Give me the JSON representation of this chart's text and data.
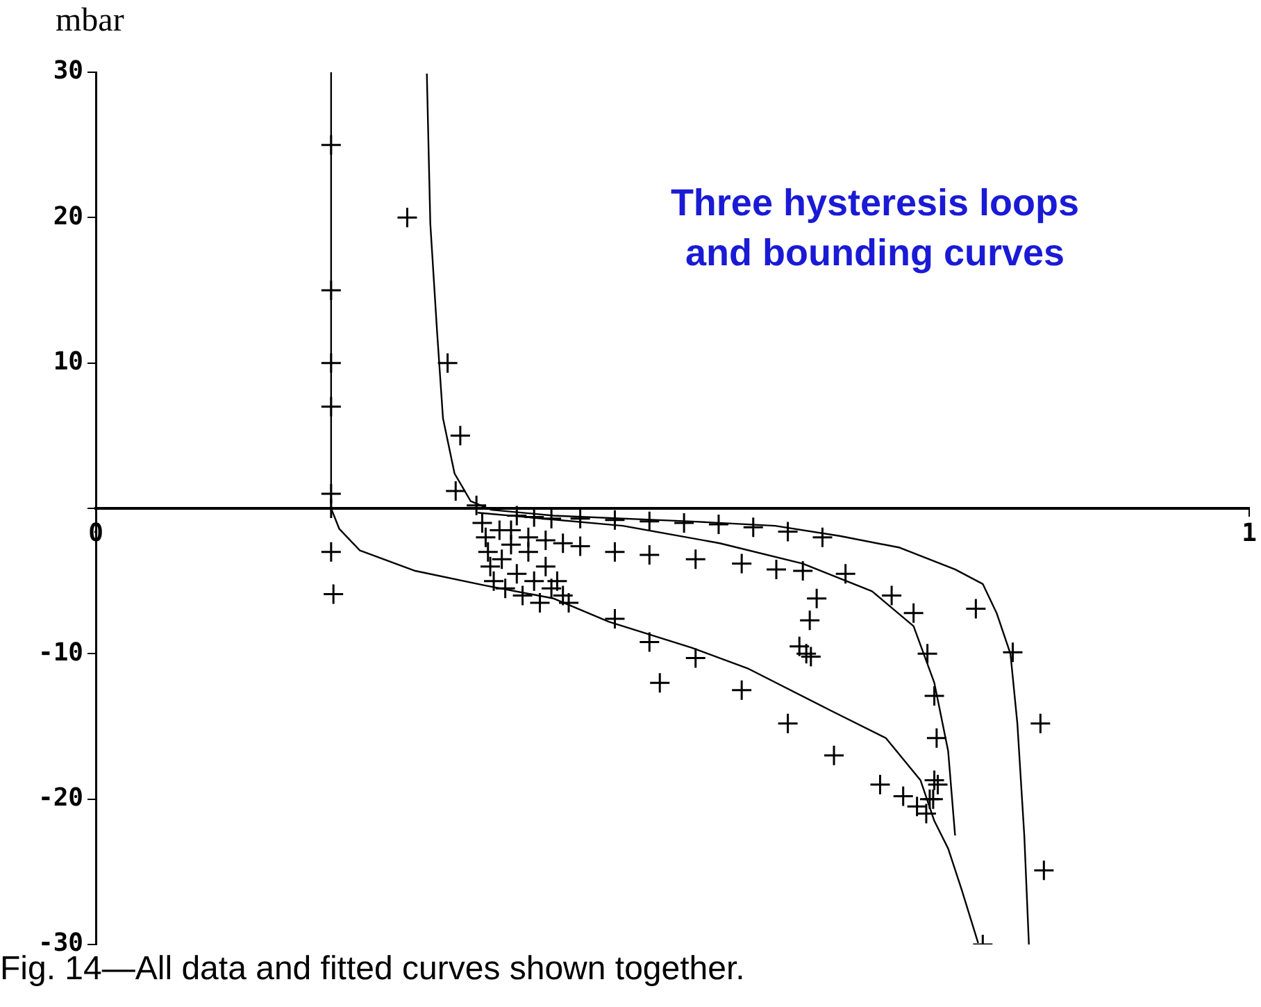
{
  "chart_data": {
    "type": "scatter",
    "title": "Three hysteresis loops\nand bounding curves",
    "ylabel": "mbar",
    "annotations": [
      "Fig. 14—All data and fitted curves shown together."
    ],
    "xlim": [
      0,
      1
    ],
    "xticks": [
      0,
      1
    ],
    "ylim": [
      -30,
      30
    ],
    "yticks": [
      -30,
      -20,
      -10,
      {
        "value": 0,
        "label": null
      },
      10,
      20,
      30
    ],
    "grid": false,
    "legend": false,
    "marker": "cross",
    "series": [
      {
        "color": "#000000",
        "x": [
          0.204,
          0.204,
          0.204,
          0.204,
          0.204,
          0.204,
          0.204,
          0.206,
          0.27,
          0.305,
          0.316,
          0.312,
          0.33,
          0.335,
          0.338,
          0.34,
          0.342,
          0.345,
          0.35,
          0.352,
          0.355,
          0.36,
          0.365,
          0.37,
          0.375,
          0.38,
          0.385,
          0.39,
          0.395,
          0.4,
          0.405,
          0.41,
          0.365,
          0.38,
          0.395,
          0.36,
          0.375,
          0.39,
          0.405,
          0.42,
          0.45,
          0.48,
          0.51,
          0.54,
          0.57,
          0.6,
          0.63,
          0.42,
          0.45,
          0.48,
          0.52,
          0.56,
          0.59,
          0.613,
          0.625,
          0.619,
          0.616,
          0.61,
          0.62,
          0.45,
          0.48,
          0.489,
          0.52,
          0.56,
          0.6,
          0.64,
          0.68,
          0.7,
          0.712,
          0.72,
          0.726,
          0.73,
          0.65,
          0.69,
          0.709,
          0.721,
          0.727,
          0.729,
          0.727,
          0.723,
          0.763,
          0.795,
          0.819,
          0.822,
          0.769
        ],
        "values": [
          25,
          15,
          10,
          7,
          1,
          0,
          -3,
          -5.9,
          20,
          10,
          5,
          1.2,
          0.2,
          -1,
          -2,
          -3,
          -4,
          -5,
          -1.5,
          -3.5,
          -5.5,
          -2.5,
          -4.5,
          -6,
          -3,
          -5,
          -6.5,
          -4,
          -5.5,
          -5,
          -6,
          -6.5,
          -0.5,
          -0.6,
          -0.7,
          -1.5,
          -2,
          -2.2,
          -2.4,
          -0.7,
          -0.8,
          -0.9,
          -1,
          -1.1,
          -1.3,
          -1.6,
          -2,
          -2.6,
          -3,
          -3.2,
          -3.5,
          -3.8,
          -4.2,
          -4.3,
          -6.2,
          -7.7,
          -10,
          -9.5,
          -10.2,
          -7.6,
          -9.2,
          -12,
          -10.3,
          -12.5,
          -14.8,
          -17,
          -19,
          -19.8,
          -20.5,
          -21,
          -20,
          -19,
          -4.5,
          -6,
          -7.2,
          -10,
          -12.9,
          -15.8,
          -18.7,
          -20,
          -6.9,
          -9.9,
          -14.8,
          -24.9,
          -30
        ]
      },
      {
        "type": "line",
        "marker": "none",
        "color": "#000000",
        "x": [
          0.204,
          0.204,
          0.211,
          0.229,
          0.277,
          0.337,
          0.397,
          0.445,
          0.517,
          0.565,
          0.637,
          0.685,
          0.715,
          0.727,
          0.739,
          0.751,
          0.765
        ],
        "values": [
          30,
          0,
          -1.4,
          -2.9,
          -4.3,
          -5.3,
          -6.2,
          -7.8,
          -9.6,
          -11,
          -13.9,
          -15.8,
          -18.7,
          -21.5,
          -23.4,
          -26.3,
          -29.9
        ]
      },
      {
        "type": "line",
        "marker": "none",
        "color": "#000000",
        "x": [
          0.287,
          0.29,
          0.296,
          0.301,
          0.311,
          0.325,
          0.343,
          0.397,
          0.517,
          0.589,
          0.645,
          0.697,
          0.745,
          0.769,
          0.781,
          0.793,
          0.799,
          0.805,
          0.809
        ],
        "values": [
          29.9,
          19.6,
          12,
          6.2,
          2.4,
          0.5,
          -0.1,
          -0.5,
          -0.9,
          -1.2,
          -1.9,
          -2.7,
          -4.2,
          -5.2,
          -7.2,
          -10,
          -14.8,
          -22.5,
          -30
        ]
      },
      {
        "type": "line",
        "marker": "none",
        "color": "#000000",
        "x": [
          0.331,
          0.457,
          0.541,
          0.613,
          0.673,
          0.709,
          0.727,
          0.739,
          0.745
        ],
        "values": [
          -0.3,
          -1.2,
          -2.4,
          -3.8,
          -5.7,
          -8.1,
          -12,
          -16.7,
          -22.5
        ]
      }
    ]
  }
}
